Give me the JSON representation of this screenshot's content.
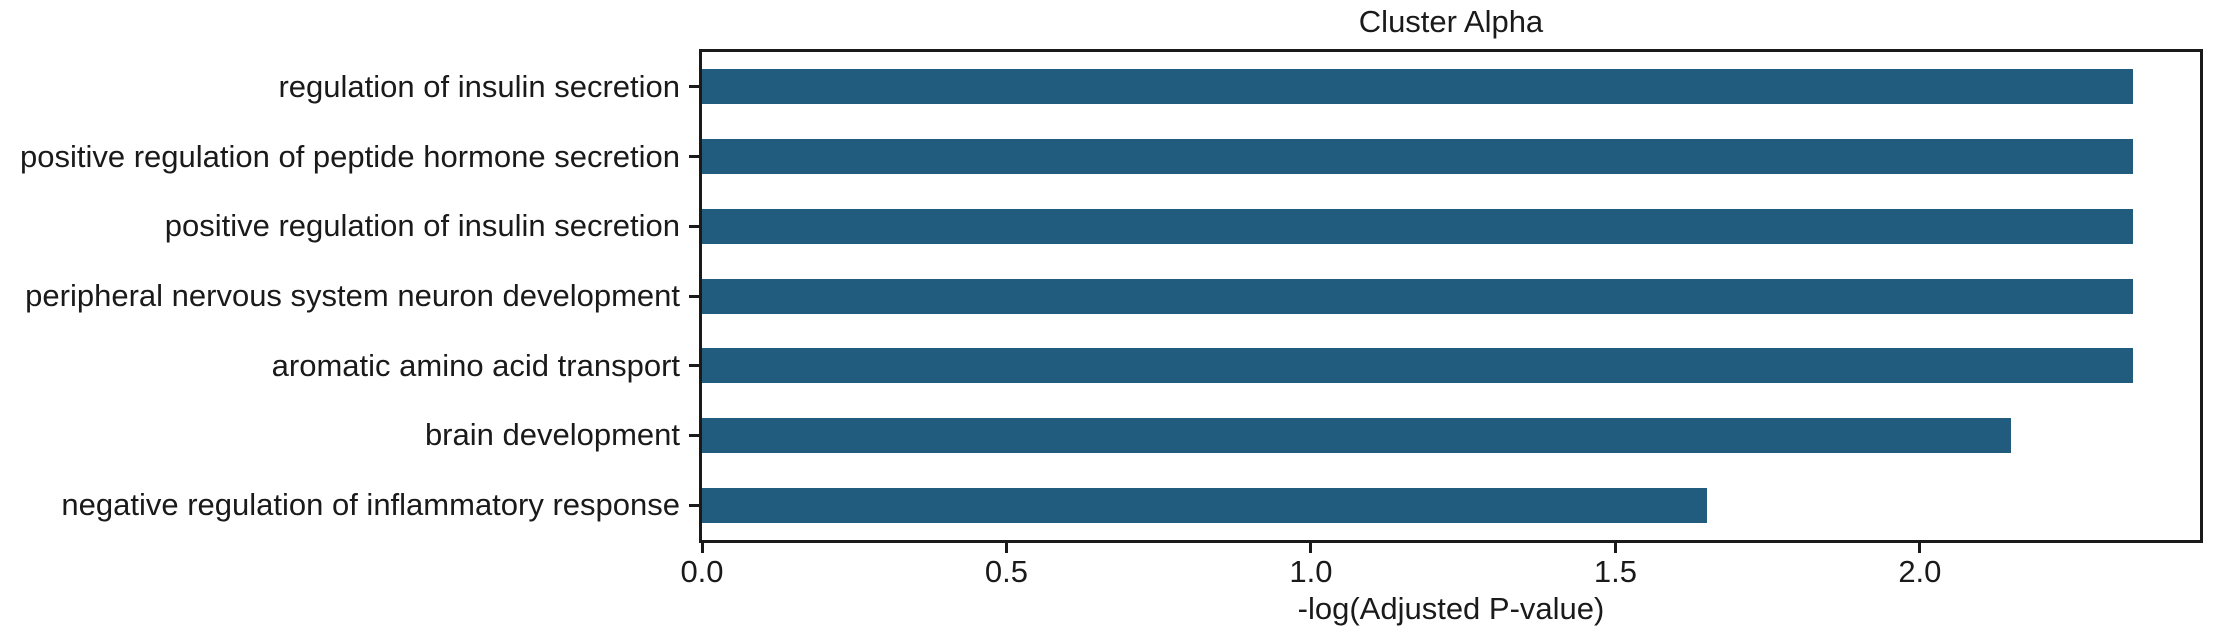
{
  "figure": {
    "background": "#ffffff"
  },
  "chart_data": {
    "type": "bar",
    "orientation": "horizontal",
    "title": "Cluster Alpha",
    "categories": [
      "regulation of insulin secretion",
      "positive regulation of peptide hormone secretion",
      "positive regulation of insulin secretion",
      "peripheral nervous system neuron development",
      "aromatic amino acid transport",
      "brain development",
      "negative regulation of inflammatory response"
    ],
    "values": [
      2.35,
      2.35,
      2.35,
      2.35,
      2.35,
      2.15,
      1.65
    ],
    "xlabel": "-log(Adjusted P-value)",
    "ylabel": "",
    "xlim": [
      0,
      2.46
    ],
    "xticks": [
      0.0,
      0.5,
      1.0,
      1.5,
      2.0
    ],
    "xtick_labels": [
      "0.0",
      "0.5",
      "1.0",
      "1.5",
      "2.0"
    ],
    "bar_color": "#215b7e",
    "axis_color": "#1a1a1a",
    "grid": false,
    "legend": "none"
  }
}
